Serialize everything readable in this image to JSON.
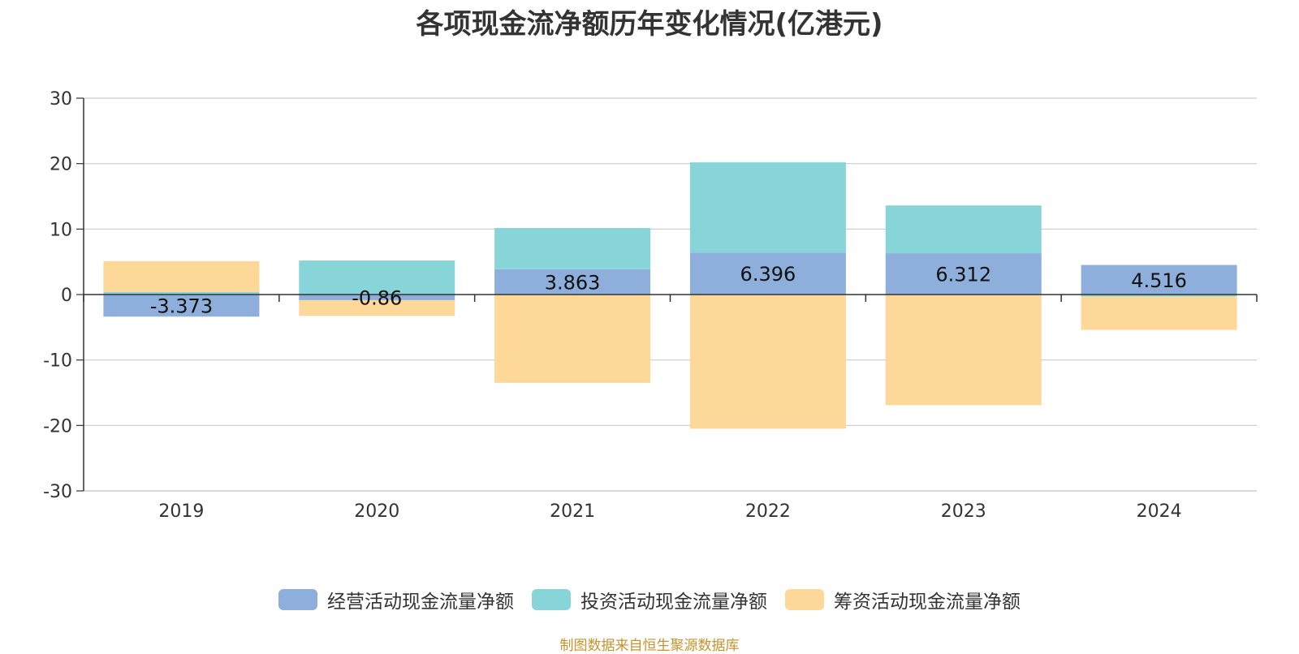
{
  "title": "各项现金流净额历年变化情况(亿港元)",
  "source_note": "制图数据来自恒生聚源数据库",
  "chart_data": {
    "type": "bar",
    "stacked": true,
    "title": "各项现金流净额历年变化情况(亿港元)",
    "xlabel": "",
    "ylabel": "",
    "categories": [
      "2019",
      "2020",
      "2021",
      "2022",
      "2023",
      "2024"
    ],
    "ylim": [
      -30,
      30
    ],
    "yticks": [
      30,
      20,
      10,
      0,
      -10,
      -20,
      -30
    ],
    "grid": true,
    "legend_position": "bottom",
    "series": [
      {
        "name": "经营活动现金流量净额",
        "color": "#8eafdc",
        "values": [
          -3.373,
          -0.86,
          3.863,
          6.396,
          6.312,
          4.516
        ],
        "data_labels": [
          "-3.373",
          "-0.86",
          "3.863",
          "6.396",
          "6.312",
          "4.516"
        ]
      },
      {
        "name": "投资活动现金流量净额",
        "color": "#88d5d9",
        "values": [
          0.4,
          5.2,
          6.3,
          13.8,
          7.3,
          -0.3
        ]
      },
      {
        "name": "筹资活动现金流量净额",
        "color": "#fed898",
        "values": [
          4.7,
          -2.4,
          -13.5,
          -20.5,
          -16.9,
          -5.1
        ]
      }
    ]
  }
}
